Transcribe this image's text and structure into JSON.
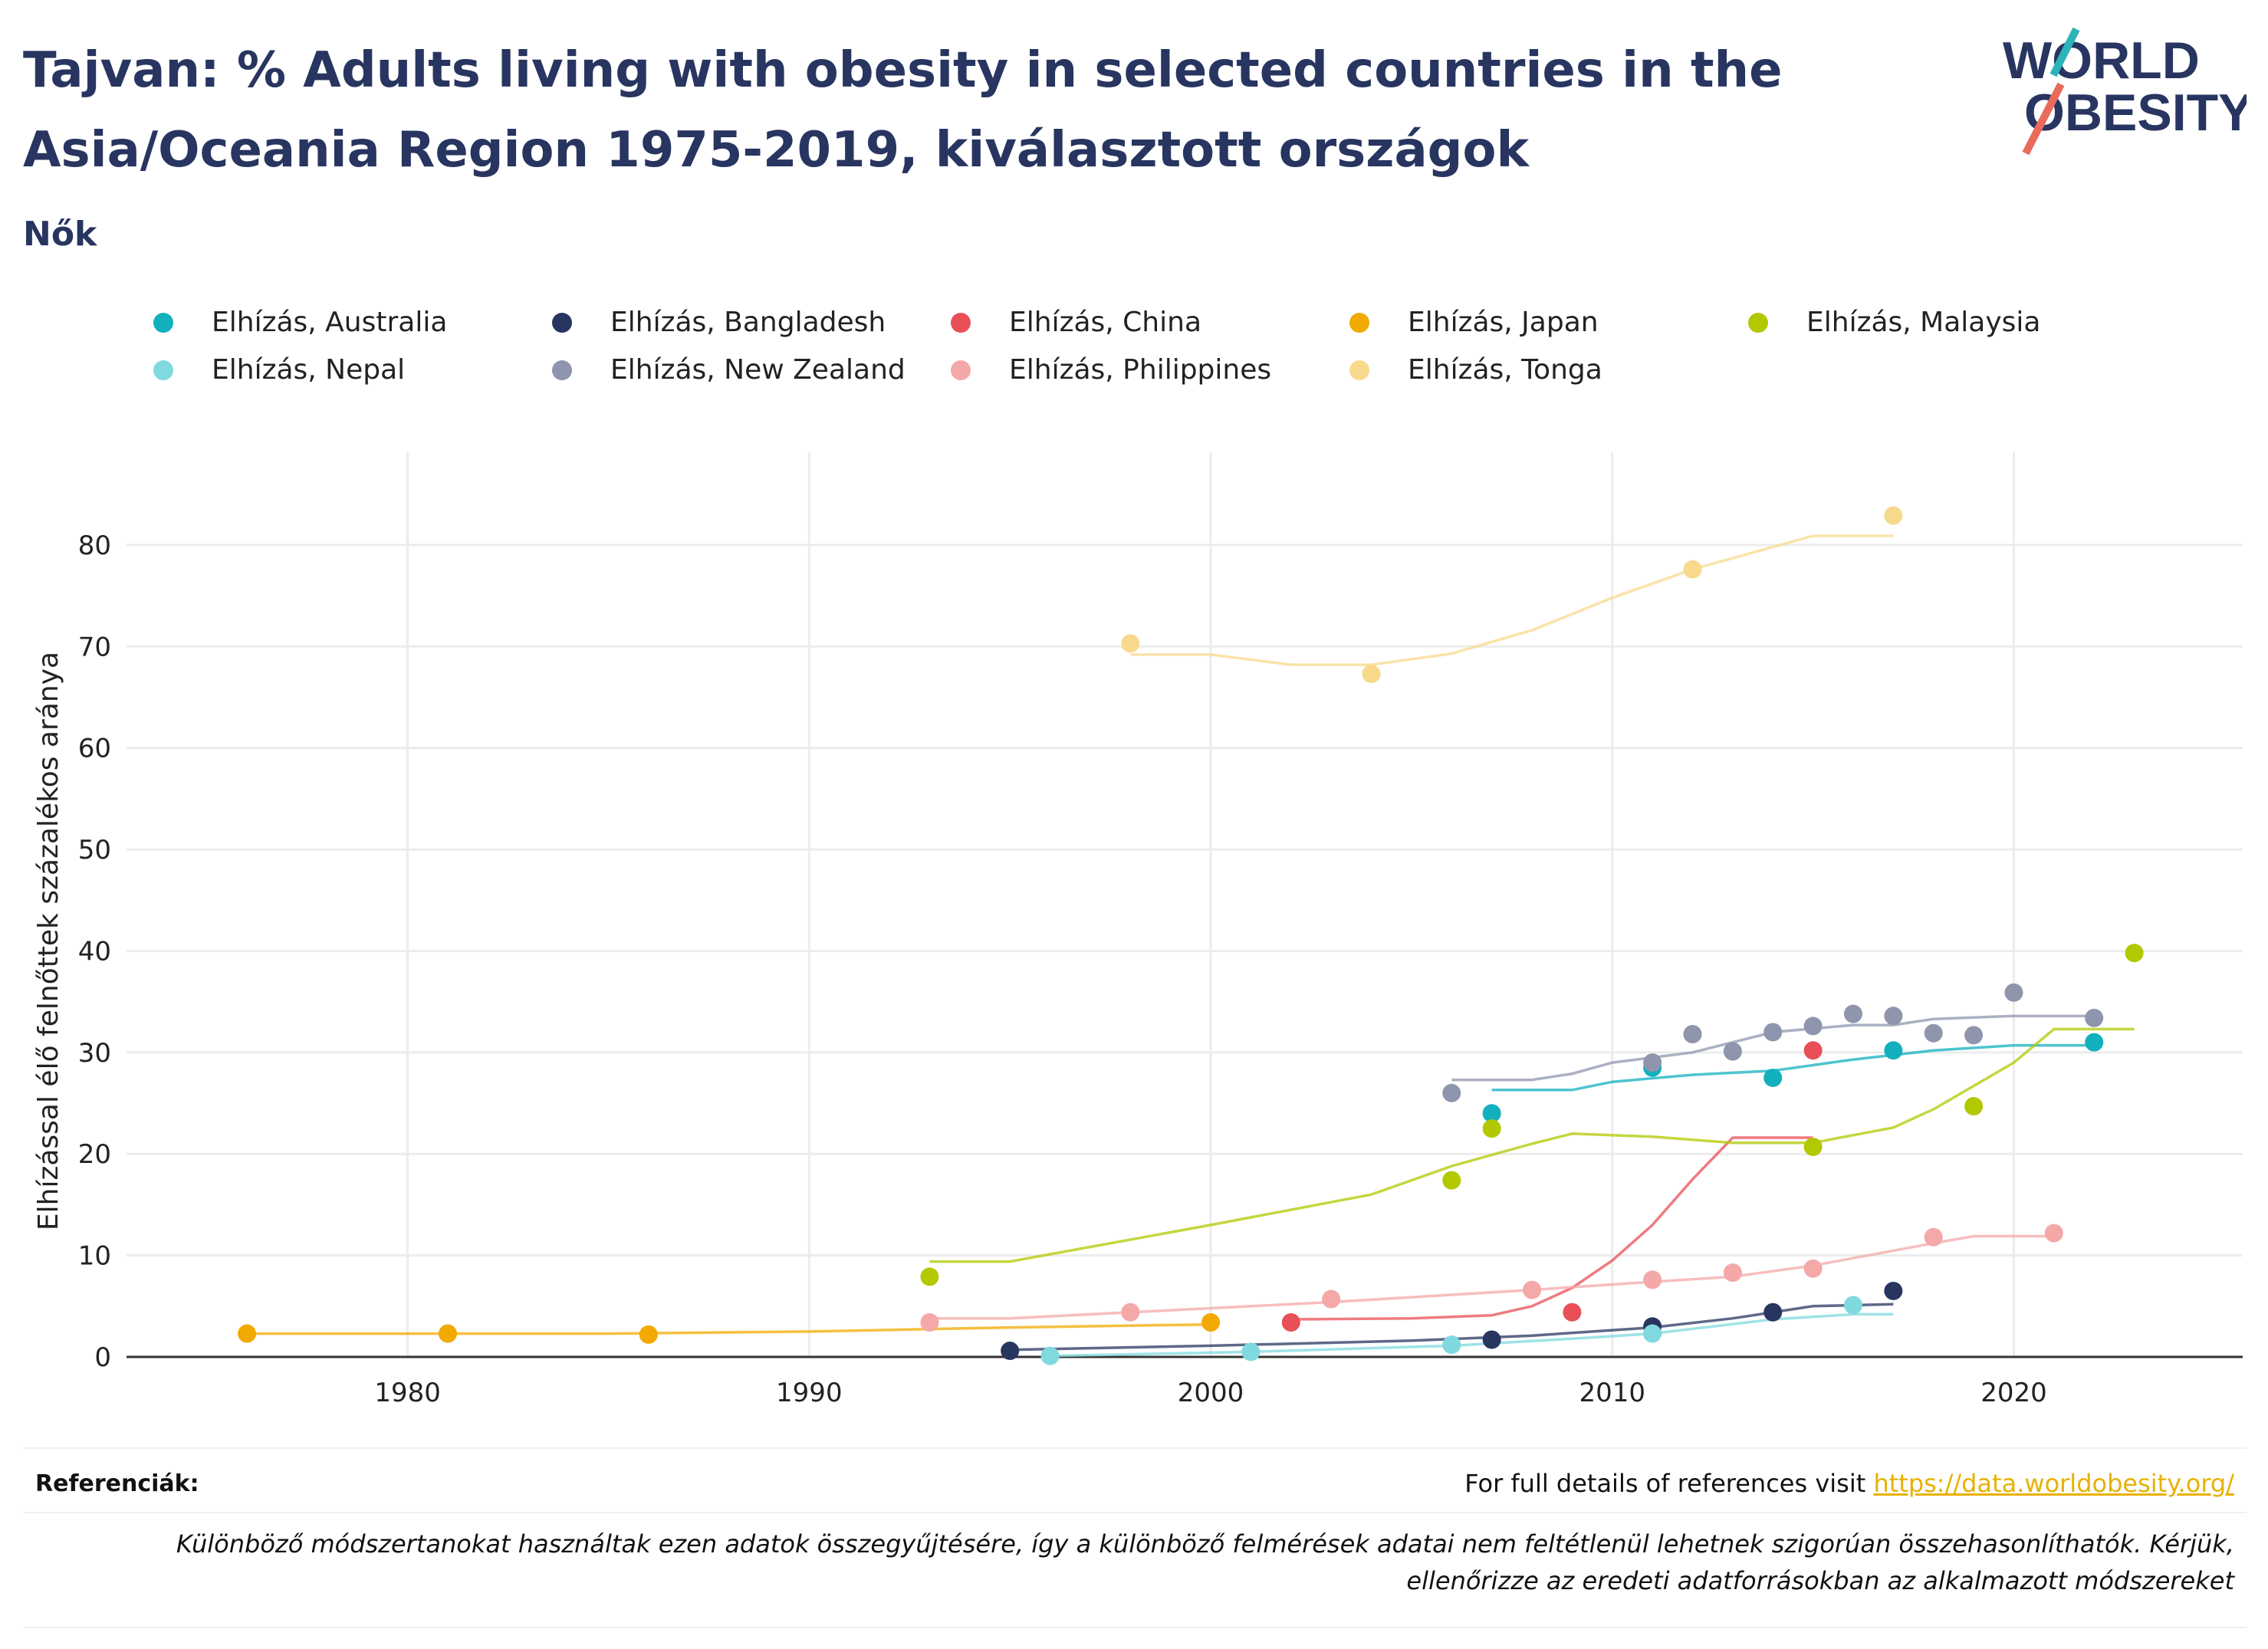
{
  "header": {
    "title": "Tajvan: % Adults living with obesity in selected countries in the Asia/Oceania Region 1975-2019, kiválasztott országok",
    "subtitle": "Nők"
  },
  "logo": {
    "line1": "WORLD",
    "line2": "OBESITY"
  },
  "footer": {
    "references_label": "Referenciák:",
    "references_text": "For full details of references visit",
    "references_link": "https://data.worldobesity.org/",
    "note": "Különböző módszertanokat használtak ezen adatok összegyűjtésére, így a különböző felmérések adatai nem feltétlenül lehetnek szigorúan összehasonlíthatók. Kérjük, ellenőrizze az eredeti adatforrásokban az alkalmazott módszereket"
  },
  "chart_data": {
    "type": "scatter",
    "title": "",
    "xlabel": "",
    "ylabel": "Elhízással élő felnőttek százalékos aránya",
    "xlim": [
      1973,
      2025.7
    ],
    "ylim": [
      0,
      88
    ],
    "xticks": [
      1980,
      1990,
      2000,
      2010,
      2020
    ],
    "yticks": [
      0,
      10,
      20,
      30,
      40,
      50,
      60,
      70,
      80
    ],
    "grid": true,
    "legend_position": "top",
    "series": [
      {
        "name": "Elhízás, Australia",
        "color": "#12b0bd",
        "points": [
          [
            2007,
            24
          ],
          [
            2011,
            28.5
          ],
          [
            2014,
            27.5
          ],
          [
            2017,
            30.2
          ],
          [
            2022,
            31
          ]
        ],
        "trend": [
          [
            2007,
            26.3
          ],
          [
            2009,
            26.3
          ],
          [
            2010,
            27.1
          ],
          [
            2012,
            27.8
          ],
          [
            2014,
            28.2
          ],
          [
            2016,
            29.3
          ],
          [
            2018,
            30.2
          ],
          [
            2020,
            30.7
          ],
          [
            2022,
            30.7
          ]
        ]
      },
      {
        "name": "Elhízás, Bangladesh",
        "color": "#283560",
        "points": [
          [
            1995,
            0.6
          ],
          [
            2007,
            1.7
          ],
          [
            2011,
            3
          ],
          [
            2014,
            4.4
          ],
          [
            2017,
            6.5
          ]
        ],
        "trend": [
          [
            1995,
            0.7
          ],
          [
            2000,
            1.1
          ],
          [
            2005,
            1.6
          ],
          [
            2008,
            2.1
          ],
          [
            2011,
            2.9
          ],
          [
            2013,
            3.8
          ],
          [
            2015,
            5.0
          ],
          [
            2017,
            5.2
          ]
        ]
      },
      {
        "name": "Elhízás, China",
        "color": "#e84f57",
        "points": [
          [
            2002,
            3.4
          ],
          [
            2009,
            4.4
          ],
          [
            2015,
            30.2
          ]
        ],
        "trend": [
          [
            2002,
            3.7
          ],
          [
            2005,
            3.8
          ],
          [
            2007,
            4.1
          ],
          [
            2008,
            5.0
          ],
          [
            2009,
            6.8
          ],
          [
            2010,
            9.5
          ],
          [
            2011,
            13.0
          ],
          [
            2012,
            17.5
          ],
          [
            2013,
            21.6
          ],
          [
            2015,
            21.6
          ]
        ]
      },
      {
        "name": "Elhízás, Japan",
        "color": "#f2a900",
        "points": [
          [
            1976,
            2.3
          ],
          [
            1981,
            2.3
          ],
          [
            1986,
            2.2
          ],
          [
            2000,
            3.4
          ]
        ],
        "trend": [
          [
            1976,
            2.3
          ],
          [
            1980,
            2.3
          ],
          [
            1985,
            2.3
          ],
          [
            1990,
            2.5
          ],
          [
            1995,
            2.9
          ],
          [
            2000,
            3.2
          ]
        ]
      },
      {
        "name": "Elhízás, Malaysia",
        "color": "#b2c800",
        "points": [
          [
            1993,
            7.9
          ],
          [
            2006,
            17.4
          ],
          [
            2007,
            22.5
          ],
          [
            2015,
            20.7
          ],
          [
            2019,
            24.7
          ],
          [
            2023,
            39.8
          ]
        ],
        "trend": [
          [
            1993,
            9.4
          ],
          [
            1995,
            9.4
          ],
          [
            2000,
            13.0
          ],
          [
            2004,
            16.0
          ],
          [
            2006,
            18.8
          ],
          [
            2008,
            21.0
          ],
          [
            2009,
            22.0
          ],
          [
            2011,
            21.7
          ],
          [
            2013,
            21.1
          ],
          [
            2015,
            21.1
          ],
          [
            2017,
            22.6
          ],
          [
            2018,
            24.4
          ],
          [
            2020,
            29.0
          ],
          [
            2021,
            32.3
          ],
          [
            2023,
            32.3
          ]
        ]
      },
      {
        "name": "Elhízás, Nepal",
        "color": "#7fd9de",
        "points": [
          [
            1996,
            0.1
          ],
          [
            2001,
            0.5
          ],
          [
            2006,
            1.2
          ],
          [
            2011,
            2.3
          ],
          [
            2016,
            5.1
          ]
        ],
        "trend": [
          [
            1996,
            0.1
          ],
          [
            2001,
            0.5
          ],
          [
            2006,
            1.1
          ],
          [
            2009,
            1.8
          ],
          [
            2011,
            2.3
          ],
          [
            2014,
            3.7
          ],
          [
            2016,
            4.2
          ],
          [
            2017,
            4.2
          ]
        ]
      },
      {
        "name": "Elhízás, New Zealand",
        "color": "#8f95ad",
        "points": [
          [
            2006,
            26
          ],
          [
            2011,
            29
          ],
          [
            2012,
            31.8
          ],
          [
            2013,
            30.1
          ],
          [
            2014,
            32
          ],
          [
            2015,
            32.6
          ],
          [
            2016,
            33.8
          ],
          [
            2017,
            33.6
          ],
          [
            2018,
            31.9
          ],
          [
            2019,
            31.7
          ],
          [
            2020,
            35.9
          ],
          [
            2022,
            33.4
          ]
        ],
        "trend": [
          [
            2006,
            27.3
          ],
          [
            2008,
            27.3
          ],
          [
            2009,
            27.9
          ],
          [
            2010,
            29.0
          ],
          [
            2012,
            30.0
          ],
          [
            2013,
            31.0
          ],
          [
            2014,
            32.0
          ],
          [
            2016,
            32.7
          ],
          [
            2017,
            32.7
          ],
          [
            2018,
            33.3
          ],
          [
            2020,
            33.6
          ],
          [
            2022,
            33.6
          ]
        ]
      },
      {
        "name": "Elhízás, Philippines",
        "color": "#f4a8a8",
        "points": [
          [
            1993,
            3.4
          ],
          [
            1998,
            4.4
          ],
          [
            2003,
            5.7
          ],
          [
            2008,
            6.6
          ],
          [
            2011,
            7.6
          ],
          [
            2013,
            8.3
          ],
          [
            2015,
            8.7
          ],
          [
            2018,
            11.8
          ],
          [
            2021,
            12.2
          ]
        ],
        "trend": [
          [
            1993,
            3.8
          ],
          [
            1995,
            3.8
          ],
          [
            1998,
            4.4
          ],
          [
            2003,
            5.4
          ],
          [
            2008,
            6.6
          ],
          [
            2011,
            7.4
          ],
          [
            2013,
            7.9
          ],
          [
            2015,
            9.0
          ],
          [
            2018,
            11.2
          ],
          [
            2019,
            11.9
          ],
          [
            2021,
            11.9
          ]
        ]
      },
      {
        "name": "Elhízás, Tonga",
        "color": "#f8d98c",
        "points": [
          [
            1998,
            70.3
          ],
          [
            2004,
            67.3
          ],
          [
            2012,
            77.6
          ],
          [
            2017,
            82.9
          ]
        ],
        "trend": [
          [
            1998,
            69.2
          ],
          [
            2000,
            69.2
          ],
          [
            2002,
            68.2
          ],
          [
            2004,
            68.2
          ],
          [
            2006,
            69.3
          ],
          [
            2008,
            71.6
          ],
          [
            2010,
            74.8
          ],
          [
            2012,
            77.6
          ],
          [
            2015,
            80.9
          ],
          [
            2017,
            80.9
          ]
        ]
      }
    ]
  }
}
